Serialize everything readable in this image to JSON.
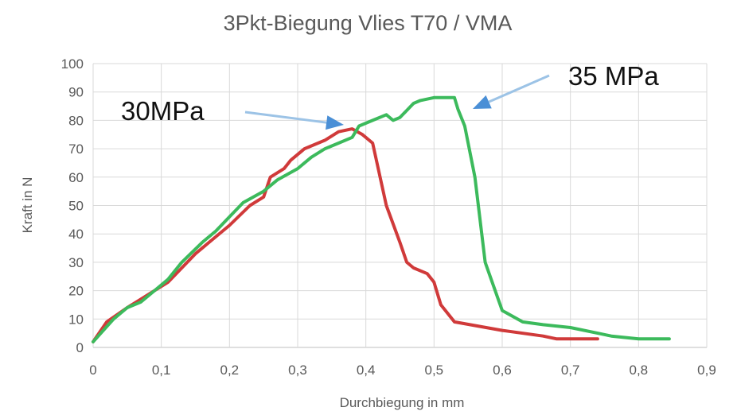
{
  "chart_data": {
    "type": "line",
    "title": "3Pkt-Biegung Vlies T70 / VMA",
    "xlabel": "Durchbiegung in mm",
    "ylabel": "Kraft in N",
    "xlim": [
      0,
      0.9
    ],
    "ylim": [
      0,
      100
    ],
    "x_ticks": [
      "0",
      "0,1",
      "0,2",
      "0,3",
      "0,4",
      "0,5",
      "0,6",
      "0,7",
      "0,8",
      "0,9"
    ],
    "y_ticks": [
      "0",
      "10",
      "20",
      "30",
      "40",
      "50",
      "60",
      "70",
      "80",
      "90",
      "100"
    ],
    "grid": true,
    "legend": "none",
    "series": [
      {
        "color": "#d03a3a",
        "x": [
          0,
          0.02,
          0.05,
          0.07,
          0.09,
          0.11,
          0.13,
          0.15,
          0.17,
          0.2,
          0.23,
          0.25,
          0.26,
          0.28,
          0.29,
          0.31,
          0.34,
          0.36,
          0.38,
          0.395,
          0.41,
          0.43,
          0.45,
          0.46,
          0.47,
          0.49,
          0.5,
          0.51,
          0.53,
          0.6,
          0.66,
          0.68,
          0.72,
          0.74
        ],
        "y": [
          2,
          9,
          14,
          17,
          20,
          23,
          28,
          33,
          37,
          43,
          50,
          53,
          60,
          63,
          66,
          70,
          73,
          76,
          77,
          75,
          72,
          50,
          37,
          30,
          28,
          26,
          23,
          15,
          9,
          6,
          4,
          3,
          3,
          3
        ]
      },
      {
        "color": "#3cba5c",
        "x": [
          0,
          0.03,
          0.05,
          0.07,
          0.09,
          0.11,
          0.13,
          0.16,
          0.18,
          0.2,
          0.22,
          0.25,
          0.27,
          0.3,
          0.32,
          0.34,
          0.36,
          0.38,
          0.39,
          0.41,
          0.43,
          0.44,
          0.45,
          0.47,
          0.48,
          0.5,
          0.52,
          0.53,
          0.535,
          0.545,
          0.56,
          0.575,
          0.6,
          0.63,
          0.66,
          0.7,
          0.74,
          0.76,
          0.8,
          0.845
        ],
        "y": [
          2,
          10,
          14,
          16,
          20,
          24,
          30,
          37,
          41,
          46,
          51,
          55,
          59,
          63,
          67,
          70,
          72,
          74,
          78,
          80,
          82,
          80,
          81,
          86,
          87,
          88,
          88,
          88,
          84,
          78,
          60,
          30,
          13,
          9,
          8,
          7,
          5,
          4,
          3,
          3
        ]
      }
    ],
    "annotations": [
      {
        "text": "30MPa"
      },
      {
        "text": "35 MPa"
      }
    ]
  }
}
